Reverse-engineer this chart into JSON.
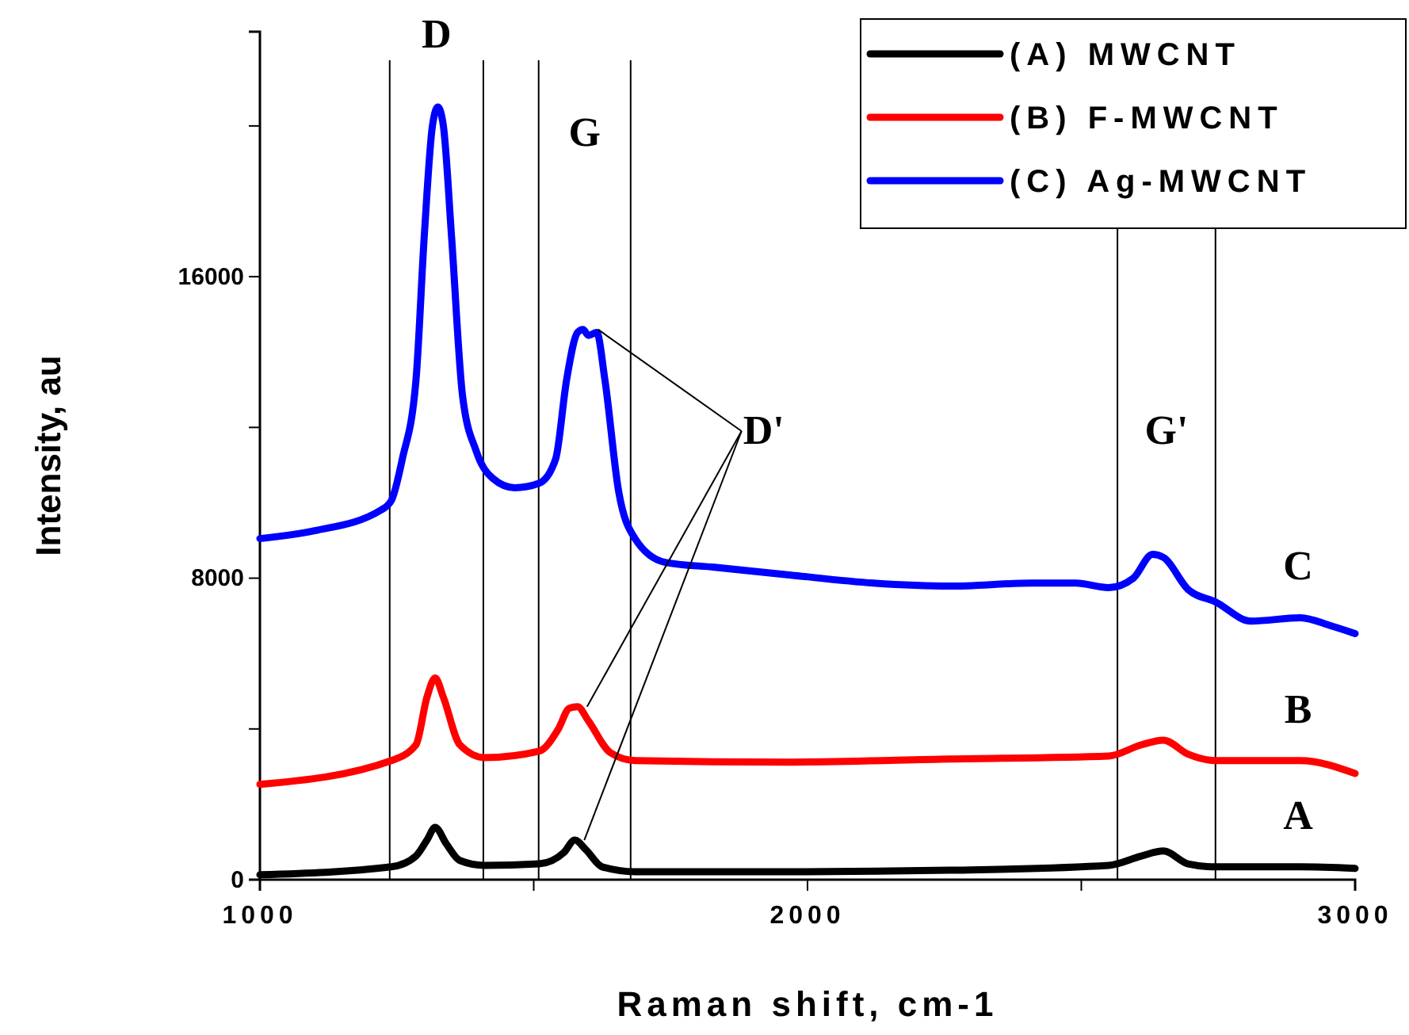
{
  "chart_data": {
    "type": "line",
    "xlabel": "Raman shift, cm-1",
    "ylabel": "Intensity, au",
    "xlim": [
      1000,
      3000
    ],
    "ylim": [
      0,
      22500
    ],
    "xticks": [
      1000,
      {
        "value": 1500,
        "label": null
      },
      2000,
      {
        "value": 2500,
        "label": null
      },
      3000
    ],
    "yticks": [
      0,
      {
        "value": 4000,
        "label": null
      },
      8000,
      {
        "value": 12000,
        "label": null
      },
      16000,
      {
        "value": 20000,
        "label": null
      }
    ],
    "grid": false,
    "legend": "top right",
    "marker": "none",
    "line_style": "solid",
    "series": [
      {
        "name": "(A) MWCNT",
        "color": "#000000",
        "x": [
          1000,
          1240,
          1285,
          1305,
          1320,
          1340,
          1365,
          1410,
          1510,
          1555,
          1575,
          1595,
          1625,
          1685,
          1970,
          2260,
          2550,
          2610,
          2650,
          2695,
          2745,
          2900,
          3000
        ],
        "values": [
          130,
          340,
          630,
          1050,
          1390,
          960,
          510,
          380,
          420,
          720,
          1050,
          800,
          340,
          210,
          210,
          250,
          380,
          630,
          760,
          420,
          340,
          340,
          300
        ]
      },
      {
        "name": "(B) F-MWCNT",
        "color": "#ff0000",
        "x": [
          1000,
          1240,
          1285,
          1305,
          1320,
          1335,
          1365,
          1410,
          1510,
          1545,
          1565,
          1580,
          1600,
          1640,
          1685,
          1970,
          2260,
          2550,
          2610,
          2650,
          2695,
          2745,
          2900,
          3000
        ],
        "values": [
          2530,
          3160,
          3580,
          4840,
          5350,
          4840,
          3580,
          3240,
          3410,
          4000,
          4550,
          4590,
          4210,
          3370,
          3160,
          3120,
          3200,
          3280,
          3580,
          3700,
          3330,
          3160,
          3160,
          2820
        ]
      },
      {
        "name": "(C) Ag-MWCNT",
        "color": "#0000ff",
        "x": [
          1000,
          1100,
          1220,
          1240,
          1260,
          1285,
          1300,
          1315,
          1325,
          1335,
          1350,
          1370,
          1395,
          1425,
          1465,
          1510,
          1540,
          1560,
          1580,
          1590,
          1600,
          1615,
          1630,
          1655,
          1685,
          1740,
          1830,
          1970,
          2120,
          2260,
          2410,
          2490,
          2550,
          2595,
          2630,
          2650,
          2695,
          2745,
          2810,
          2900,
          2955,
          3000
        ],
        "values": [
          9050,
          9260,
          9800,
          10060,
          11160,
          13260,
          17050,
          20000,
          20500,
          20000,
          17050,
          12840,
          11370,
          10650,
          10400,
          10520,
          11160,
          13260,
          14520,
          14600,
          14440,
          14520,
          13260,
          10310,
          9050,
          8420,
          8290,
          8080,
          7870,
          7790,
          7870,
          7870,
          7750,
          8000,
          8630,
          8550,
          7700,
          7370,
          6860,
          6950,
          6740,
          6530
        ]
      }
    ],
    "ref_lines": [
      {
        "axis": "x",
        "value": 1237,
        "color": "#000000"
      },
      {
        "axis": "x",
        "value": 1408,
        "color": "#000000"
      },
      {
        "axis": "x",
        "value": 1509,
        "color": "#000000"
      },
      {
        "axis": "x",
        "value": 1677,
        "color": "#000000"
      },
      {
        "axis": "x",
        "value": 2566,
        "color": "#000000"
      },
      {
        "axis": "x",
        "value": 2745,
        "color": "#000000"
      }
    ],
    "annotations": [
      "D",
      "G",
      {
        "text": "D'",
        "x": 1600,
        "y": 14600
      },
      "G'",
      "C",
      "B",
      "A"
    ]
  }
}
